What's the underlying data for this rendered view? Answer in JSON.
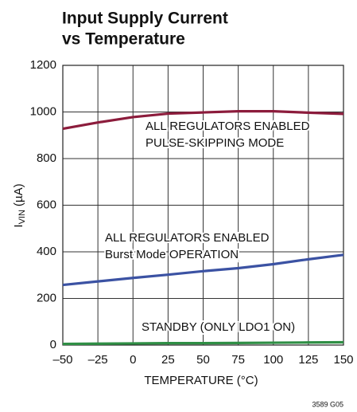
{
  "chart_data": {
    "type": "line",
    "title": [
      "Input Supply Current",
      "vs Temperature"
    ],
    "y_label": [
      "I",
      "VIN",
      "(µA)"
    ],
    "x_label": "TEMPERATURE (°C)",
    "footnote": "3589 G05",
    "x": [
      -50,
      -25,
      0,
      25,
      50,
      75,
      100,
      125,
      150
    ],
    "series": [
      {
        "color": "#8c1c3c",
        "values": [
          928,
          955,
          978,
          993,
          998,
          1003,
          1003,
          997,
          992
        ]
      },
      {
        "color": "#3b52a3",
        "values": [
          258,
          273,
          288,
          302,
          317,
          330,
          347,
          368,
          387
        ]
      },
      {
        "color": "#2f8f45",
        "values": [
          5,
          6,
          7,
          8,
          8,
          9,
          10,
          11,
          12
        ]
      }
    ],
    "annotations": [
      [
        "ALL REGULATORS ENABLED",
        "PULSE-SKIPPING MODE"
      ],
      [
        "ALL REGULATORS ENABLED",
        "Burst Mode OPERATION"
      ],
      [
        "STANDBY (ONLY LDO1 ON)"
      ]
    ],
    "xlim": [
      -50,
      150
    ],
    "xticks": [
      {
        "value": -50,
        "label": "–50"
      },
      {
        "value": -25,
        "label": "–25"
      },
      0,
      25,
      50,
      75,
      100,
      125,
      150
    ],
    "ylim": [
      0,
      1200
    ],
    "yticks": [
      0,
      200,
      400,
      600,
      800,
      1000,
      1200
    ],
    "grid": true
  }
}
